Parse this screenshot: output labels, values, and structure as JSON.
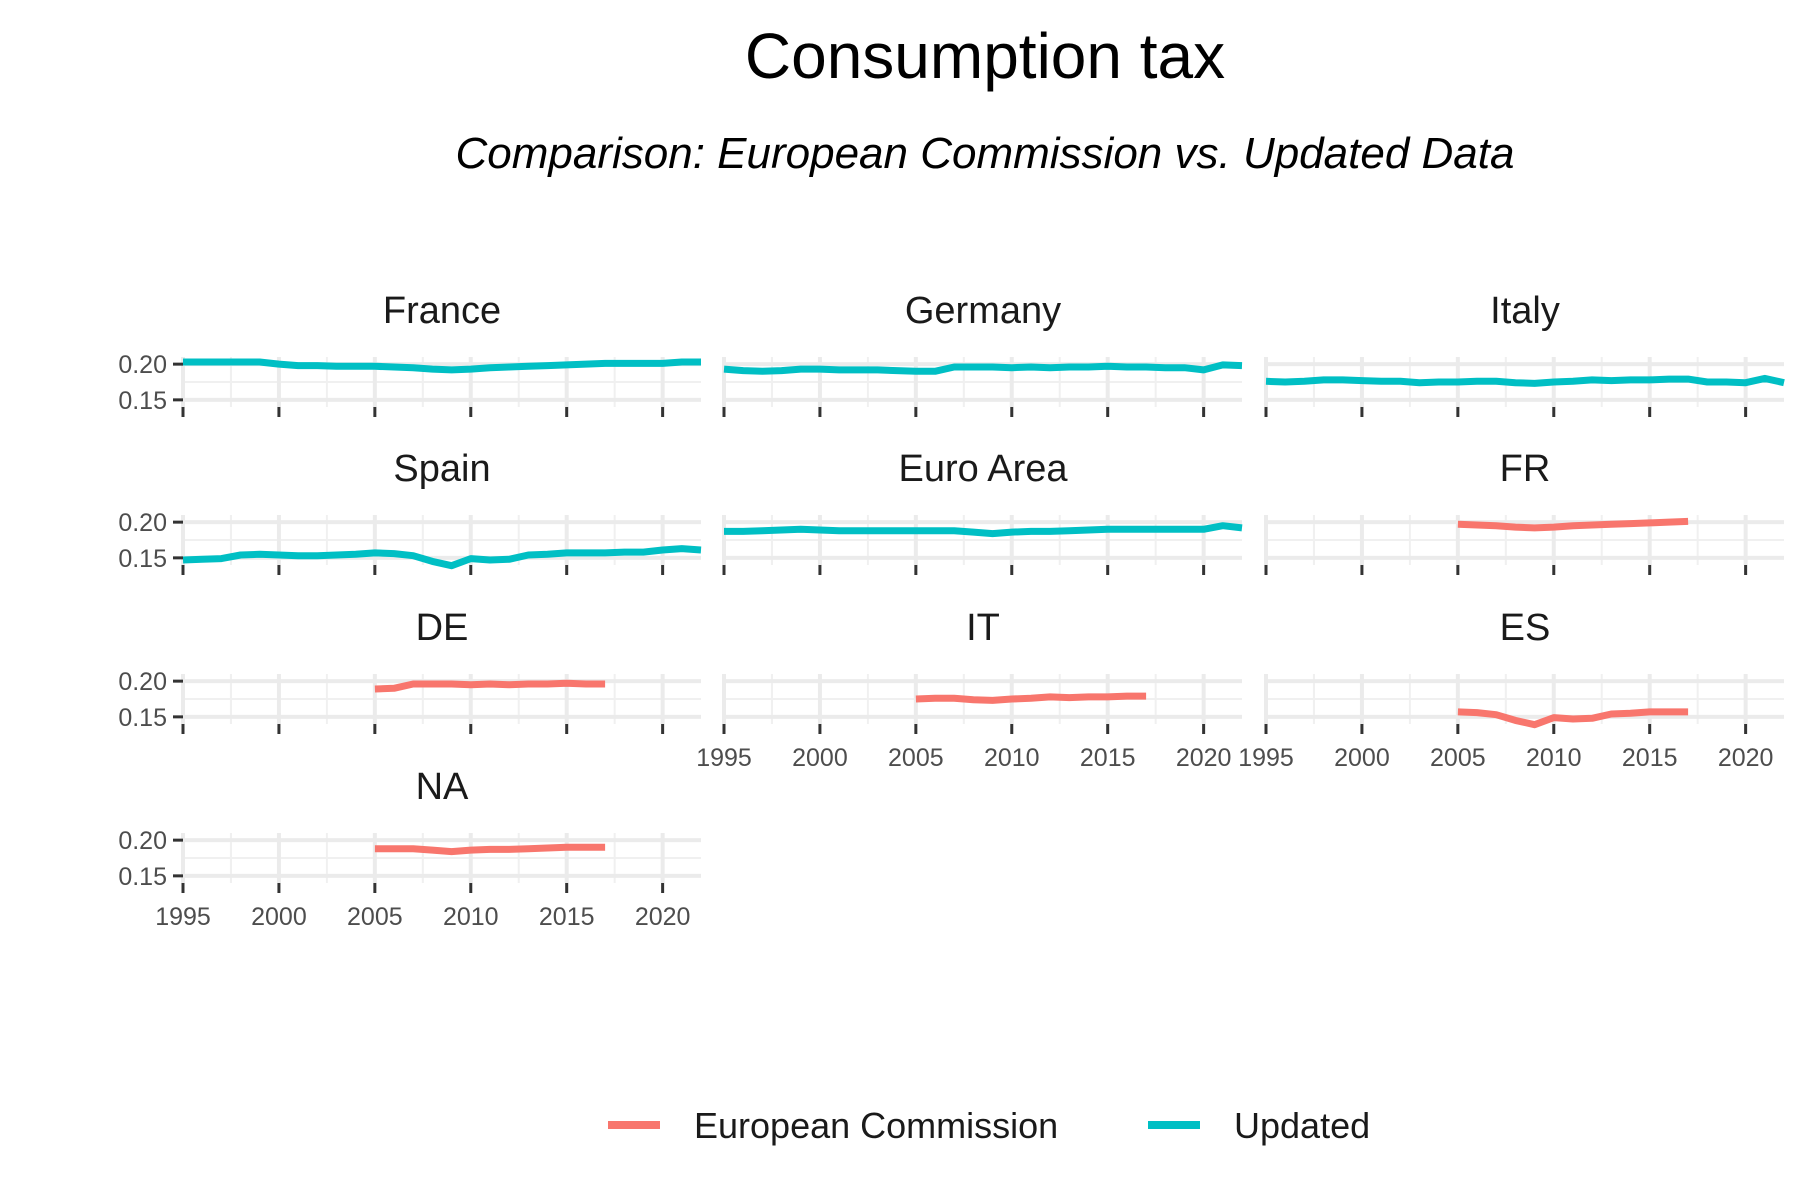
{
  "chart_data": {
    "type": "line",
    "title": "Consumption tax",
    "subtitle": "Comparison: European Commission vs. Updated Data",
    "xlim": [
      1995,
      2022
    ],
    "ylim": [
      0.14,
      0.21
    ],
    "x_ticks": [
      1995,
      2000,
      2005,
      2010,
      2015,
      2020
    ],
    "y_ticks": [
      0.15,
      0.2
    ],
    "y_tick_labels": [
      "0.15",
      "0.20"
    ],
    "grid": true,
    "legend_position": "bottom",
    "legend": [
      {
        "name": "European Commission",
        "color": "#F8766D"
      },
      {
        "name": "Updated",
        "color": "#00BFC4"
      }
    ],
    "panels": [
      {
        "title": "France",
        "color": "#00BFC4",
        "x": [
          1995,
          1996,
          1997,
          1998,
          1999,
          2000,
          2001,
          2002,
          2003,
          2004,
          2005,
          2006,
          2007,
          2008,
          2009,
          2010,
          2011,
          2012,
          2013,
          2014,
          2015,
          2016,
          2017,
          2018,
          2019,
          2020,
          2021,
          2022
        ],
        "values": [
          0.203,
          0.203,
          0.203,
          0.203,
          0.203,
          0.2,
          0.198,
          0.198,
          0.197,
          0.197,
          0.197,
          0.196,
          0.195,
          0.193,
          0.192,
          0.193,
          0.195,
          0.196,
          0.197,
          0.198,
          0.199,
          0.2,
          0.201,
          0.201,
          0.201,
          0.201,
          0.203,
          0.203
        ]
      },
      {
        "title": "Germany",
        "color": "#00BFC4",
        "x": [
          1995,
          1996,
          1997,
          1998,
          1999,
          2000,
          2001,
          2002,
          2003,
          2004,
          2005,
          2006,
          2007,
          2008,
          2009,
          2010,
          2011,
          2012,
          2013,
          2014,
          2015,
          2016,
          2017,
          2018,
          2019,
          2020,
          2021,
          2022
        ],
        "values": [
          0.193,
          0.191,
          0.19,
          0.191,
          0.193,
          0.193,
          0.192,
          0.192,
          0.192,
          0.191,
          0.19,
          0.19,
          0.196,
          0.196,
          0.196,
          0.195,
          0.196,
          0.195,
          0.196,
          0.196,
          0.197,
          0.196,
          0.196,
          0.195,
          0.195,
          0.192,
          0.199,
          0.198
        ]
      },
      {
        "title": "Italy",
        "color": "#00BFC4",
        "x": [
          1995,
          1996,
          1997,
          1998,
          1999,
          2000,
          2001,
          2002,
          2003,
          2004,
          2005,
          2006,
          2007,
          2008,
          2009,
          2010,
          2011,
          2012,
          2013,
          2014,
          2015,
          2016,
          2017,
          2018,
          2019,
          2020,
          2021,
          2022
        ],
        "values": [
          0.176,
          0.175,
          0.176,
          0.178,
          0.178,
          0.177,
          0.176,
          0.176,
          0.174,
          0.175,
          0.175,
          0.176,
          0.176,
          0.174,
          0.173,
          0.175,
          0.176,
          0.178,
          0.177,
          0.178,
          0.178,
          0.179,
          0.179,
          0.175,
          0.175,
          0.174,
          0.18,
          0.174
        ]
      },
      {
        "title": "Spain",
        "color": "#00BFC4",
        "x": [
          1995,
          1996,
          1997,
          1998,
          1999,
          2000,
          2001,
          2002,
          2003,
          2004,
          2005,
          2006,
          2007,
          2008,
          2009,
          2010,
          2011,
          2012,
          2013,
          2014,
          2015,
          2016,
          2017,
          2018,
          2019,
          2020,
          2021,
          2022
        ],
        "values": [
          0.147,
          0.148,
          0.149,
          0.154,
          0.155,
          0.154,
          0.153,
          0.153,
          0.154,
          0.155,
          0.157,
          0.156,
          0.153,
          0.145,
          0.139,
          0.149,
          0.147,
          0.148,
          0.154,
          0.155,
          0.157,
          0.157,
          0.157,
          0.158,
          0.158,
          0.161,
          0.163,
          0.161
        ]
      },
      {
        "title": "Euro Area",
        "color": "#00BFC4",
        "x": [
          1995,
          1996,
          1997,
          1998,
          1999,
          2000,
          2001,
          2002,
          2003,
          2004,
          2005,
          2006,
          2007,
          2008,
          2009,
          2010,
          2011,
          2012,
          2013,
          2014,
          2015,
          2016,
          2017,
          2018,
          2019,
          2020,
          2021,
          2022
        ],
        "values": [
          0.187,
          0.187,
          0.188,
          0.189,
          0.19,
          0.189,
          0.188,
          0.188,
          0.188,
          0.188,
          0.188,
          0.188,
          0.188,
          0.186,
          0.184,
          0.186,
          0.187,
          0.187,
          0.188,
          0.189,
          0.19,
          0.19,
          0.19,
          0.19,
          0.19,
          0.19,
          0.195,
          0.192
        ]
      },
      {
        "title": "FR",
        "color": "#F8766D",
        "x": [
          2005,
          2006,
          2007,
          2008,
          2009,
          2010,
          2011,
          2012,
          2013,
          2014,
          2015,
          2016,
          2017
        ],
        "values": [
          0.197,
          0.196,
          0.195,
          0.193,
          0.192,
          0.193,
          0.195,
          0.196,
          0.197,
          0.198,
          0.199,
          0.2,
          0.201
        ]
      },
      {
        "title": "DE",
        "color": "#F8766D",
        "x": [
          2005,
          2006,
          2007,
          2008,
          2009,
          2010,
          2011,
          2012,
          2013,
          2014,
          2015,
          2016,
          2017
        ],
        "values": [
          0.189,
          0.19,
          0.196,
          0.196,
          0.196,
          0.195,
          0.196,
          0.195,
          0.196,
          0.196,
          0.197,
          0.196,
          0.196
        ]
      },
      {
        "title": "IT",
        "color": "#F8766D",
        "x": [
          2005,
          2006,
          2007,
          2008,
          2009,
          2010,
          2011,
          2012,
          2013,
          2014,
          2015,
          2016,
          2017
        ],
        "values": [
          0.175,
          0.176,
          0.176,
          0.174,
          0.173,
          0.175,
          0.176,
          0.178,
          0.177,
          0.178,
          0.178,
          0.179,
          0.179
        ]
      },
      {
        "title": "ES",
        "color": "#F8766D",
        "x": [
          2005,
          2006,
          2007,
          2008,
          2009,
          2010,
          2011,
          2012,
          2013,
          2014,
          2015,
          2016,
          2017
        ],
        "values": [
          0.157,
          0.156,
          0.153,
          0.145,
          0.139,
          0.149,
          0.147,
          0.148,
          0.154,
          0.155,
          0.157,
          0.157,
          0.157
        ]
      },
      {
        "title": "NA",
        "color": "#F8766D",
        "x": [
          2005,
          2006,
          2007,
          2008,
          2009,
          2010,
          2011,
          2012,
          2013,
          2014,
          2015,
          2016,
          2017
        ],
        "values": [
          0.188,
          0.188,
          0.188,
          0.186,
          0.184,
          0.186,
          0.187,
          0.187,
          0.188,
          0.189,
          0.19,
          0.19,
          0.19
        ]
      }
    ]
  }
}
